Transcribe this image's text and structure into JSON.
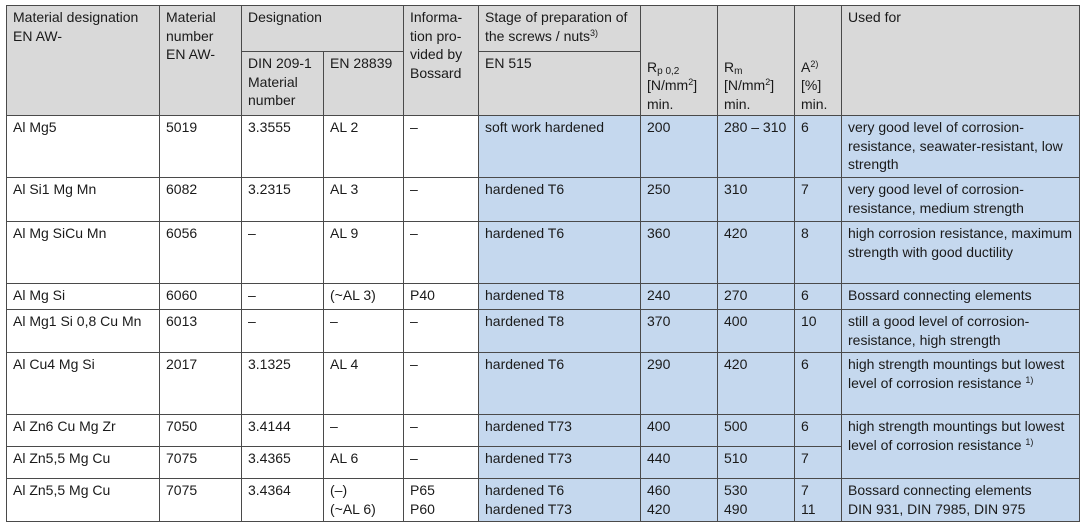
{
  "headers": {
    "material_designation": "Material designation EN AW-",
    "material_number": "Material number EN AW-",
    "designation": "Designation",
    "din209": "DIN 209-1 Material number",
    "en28839": "EN 28839",
    "information": "Informa-tion pro-vided by Bossard",
    "stage": "Stage of preparation of the screws / nuts",
    "stage_sup": "3)",
    "en515": "EN 515",
    "rp_base": "R",
    "rp_sub": "p 0,2",
    "rp_unit": "[N/mm",
    "rp_unit_sup": "2",
    "rp_unit_end": "]",
    "rp_min": "min.",
    "rm_base": "R",
    "rm_sub": "m",
    "rm_unit": "[N/mm",
    "rm_unit_sup": "2",
    "rm_unit_end": "]",
    "rm_min": "min.",
    "a_base": "A",
    "a_sup": "2)",
    "a_unit": "[%]",
    "a_min": "min.",
    "used_for": "Used for"
  },
  "rows": [
    {
      "designation": "Al Mg5",
      "number": "5019",
      "din": "3.3555",
      "en28839": "AL 2",
      "info": "–",
      "stage": "soft work hardened",
      "rp": "200",
      "rm": "280 – 310",
      "a": "6",
      "used": "very good level of corrosion-resistance, seawater-resistant, low strength"
    },
    {
      "designation": "Al Si1 Mg Mn",
      "number": "6082",
      "din": "3.2315",
      "en28839": "AL 3",
      "info": "–",
      "stage": "hardened T6",
      "rp": "250",
      "rm": "310",
      "a": "7",
      "used": "very good level of corrosion-resistance, medium strength"
    },
    {
      "designation": "Al Mg SiCu Mn",
      "number": "6056",
      "din": "–",
      "en28839": "AL 9",
      "info": "–",
      "stage": "hardened T6",
      "rp": "360",
      "rm": "420",
      "a": "8",
      "used": "high corrosion resistance, maximum strength with good ductility"
    },
    {
      "designation": "Al Mg Si",
      "number": "6060",
      "din": "–",
      "en28839": "(~AL 3)",
      "info": "P40",
      "stage": "hardened T8",
      "rp": "240",
      "rm": "270",
      "a": "6",
      "used": "Bossard connecting elements"
    },
    {
      "designation": "Al Mg1 Si 0,8 Cu Mn",
      "number": "6013",
      "din": "–",
      "en28839": "–",
      "info": "–",
      "stage": "hardened T8",
      "rp": "370",
      "rm": "400",
      "a": "10",
      "used": "still a good level of corrosion-resistance, high strength"
    },
    {
      "designation": "Al Cu4 Mg Si",
      "number": "2017",
      "din": "3.1325",
      "en28839": "AL 4",
      "info": "–",
      "stage": "hardened T6",
      "rp": "290",
      "rm": "420",
      "a": "6",
      "used": "high strength mountings but lowest level of corrosion resistance",
      "used_sup": "1)"
    },
    {
      "designation": "Al Zn6 Cu Mg Zr",
      "number": "7050",
      "din": "3.4144",
      "en28839": "–",
      "info": "–",
      "stage": "hardened T73",
      "rp": "400",
      "rm": "500",
      "a": "6"
    },
    {
      "designation": "Al Zn5,5 Mg Cu",
      "number": "7075",
      "din": "3.4365",
      "en28839": "AL 6",
      "info": "–",
      "stage": "hardened T73",
      "rp": "440",
      "rm": "510",
      "a": "7"
    },
    {
      "designation": "Al Zn5,5 Mg Cu",
      "number": "7075",
      "din": "3.4364",
      "en28839_1": "(–)",
      "en28839_2": "(~AL 6)",
      "info_1": "P65",
      "info_2": "P60",
      "stage_1": "hardened T6",
      "stage_2": "hardened T73",
      "rp_1": "460",
      "rp_2": "420",
      "rm_1": "530",
      "rm_2": "490",
      "a_1": "7",
      "a_2": "11",
      "used_1": "Bossard connecting elements",
      "used_2": "DIN 931, DIN 7985, DIN 975"
    }
  ],
  "merged_used": {
    "text": "high strength mountings but lowest level of corrosion resistance",
    "sup": "1)"
  }
}
